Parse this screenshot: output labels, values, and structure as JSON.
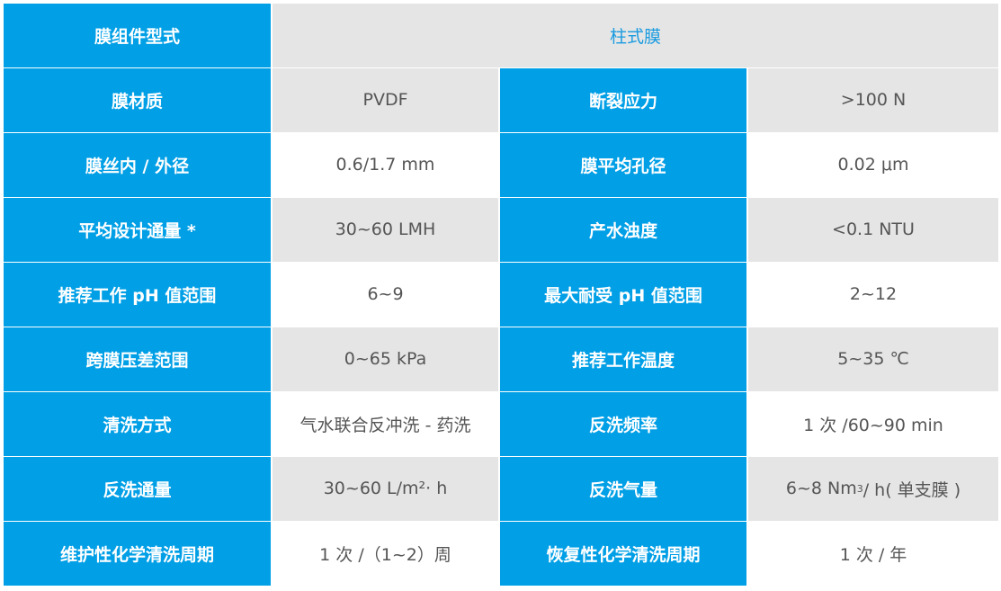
{
  "colors": {
    "header_bg": "#009fe6",
    "alt_row": "#e5e5e5",
    "accent_text": "#1a9be0"
  },
  "title_row": {
    "label": "膜组件型式",
    "value": "柱式膜"
  },
  "rows": [
    {
      "k1": "膜材质",
      "v1": "PVDF",
      "k2": "断裂应力",
      "v2": ">100 N"
    },
    {
      "k1": "膜丝内 / 外径",
      "v1": "0.6/1.7 mm",
      "k2": "膜平均孔径",
      "v2": "0.02 μm"
    },
    {
      "k1": "平均设计通量 *",
      "v1": "30~60 LMH",
      "k2": "产水浊度",
      "v2": "<0.1 NTU"
    },
    {
      "k1": "推荐工作 pH 值范围",
      "v1": "6~9",
      "k2": "最大耐受 pH 值范围",
      "v2": "2~12"
    },
    {
      "k1": "跨膜压差范围",
      "v1": "0~65 kPa",
      "k2": "推荐工作温度",
      "v2": "5~35 ℃"
    },
    {
      "k1": "清洗方式",
      "v1": "气水联合反冲洗 - 药洗",
      "k2": "反洗频率",
      "v2": "1 次 /60~90 min"
    },
    {
      "k1": "反洗通量",
      "v1": "30~60 L/m²· h",
      "k2": "反洗气量",
      "v2a": "6~8 Nm",
      "v2sup": "3",
      "v2b": "/ h( 单支膜 )"
    },
    {
      "k1": "维护性化学清洗周期",
      "v1": "1 次 /（1~2）周",
      "k2": "恢复性化学清洗周期",
      "v2": "1 次 / 年"
    }
  ]
}
